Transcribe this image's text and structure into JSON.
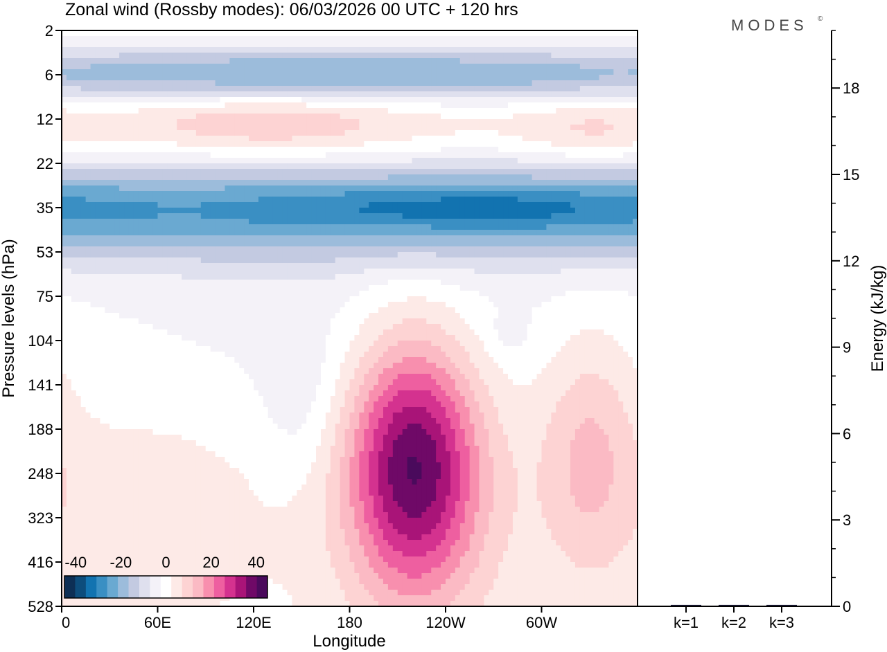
{
  "chart_data": {
    "type": "heatmap",
    "title": "Zonal wind (Rossby modes):  06/03/2026  00 UTC  + 120 hrs",
    "brand": "MODES",
    "brand_mark": "©",
    "xlabel": "Longitude",
    "ylabel": "Pressure levels (hPa)",
    "xticks": [
      "0",
      "60E",
      "120E",
      "180",
      "120W",
      "60W"
    ],
    "xtick_degrees": [
      0,
      60,
      120,
      180,
      240,
      300
    ],
    "xlim_degrees": [
      0,
      360
    ],
    "yticks": [
      "2",
      "6",
      "12",
      "22",
      "35",
      "53",
      "75",
      "104",
      "141",
      "188",
      "248",
      "323",
      "416",
      "528"
    ],
    "colorbar": {
      "ticks": [
        "-40",
        "-20",
        "0",
        "20",
        "40"
      ],
      "tick_values": [
        -40,
        -20,
        0,
        20,
        40
      ],
      "vmin": -45,
      "vmax": 45,
      "colors": [
        "#0d2f55",
        "#0d4d7c",
        "#1273b0",
        "#3a8fc3",
        "#6aa9d1",
        "#9cbcdb",
        "#c3cae1",
        "#dfe0ee",
        "#f4f2f8",
        "#ffffff",
        "#fdeae7",
        "#fdd3d3",
        "#fbbac4",
        "#f88fae",
        "#ee5fa0",
        "#d4328f",
        "#a91478",
        "#6f0967",
        "#4a0a5c"
      ]
    },
    "energy_axis": {
      "label": "Energy (kJ/kg)",
      "ticks": [
        "0",
        "3",
        "6",
        "9",
        "12",
        "15",
        "18"
      ],
      "tick_values": [
        0,
        3,
        6,
        9,
        12,
        15,
        18
      ],
      "ylim": [
        0,
        20
      ]
    },
    "energy_bars": {
      "type": "bar",
      "categories": [
        "k=1",
        "k=2",
        "k=3"
      ],
      "values": [
        0.05,
        0.05,
        0.05
      ]
    },
    "blobs": [
      {
        "name": "upper-easterly-jet-2hPa",
        "lon": 170,
        "lev": 1.0,
        "dlon": 250,
        "dlev": 0.45,
        "amp": -24
      },
      {
        "name": "upper-positive-band",
        "lon": 180,
        "lev": 2.3,
        "dlon": 600,
        "dlev": 1.0,
        "amp": 5
      },
      {
        "name": "upper-max-60E",
        "lon": 130,
        "lev": 2.1,
        "dlon": 60,
        "dlev": 0.55,
        "amp": 9
      },
      {
        "name": "upper-max-60W",
        "lon": 330,
        "lev": 2.3,
        "dlon": 30,
        "dlev": 0.5,
        "amp": 6
      },
      {
        "name": "easterly-jet-35hPa",
        "lon": 180,
        "lev": 4.0,
        "dlon": 700,
        "dlev": 0.85,
        "amp": -26
      },
      {
        "name": "easterly-core-35hPa",
        "lon": 260,
        "lev": 4.0,
        "dlon": 80,
        "dlev": 0.35,
        "amp": -8
      },
      {
        "name": "negative-slab-53-100hPa",
        "lon": 190,
        "lev": 6.5,
        "dlon": 150,
        "dlev": 1.6,
        "amp": -4
      },
      {
        "name": "negative-pocket-135E",
        "lon": 150,
        "lev": 8.5,
        "dlon": 18,
        "dlev": 1.3,
        "amp": -5
      },
      {
        "name": "negative-pocket-80W",
        "lon": 280,
        "lev": 6.8,
        "dlon": 8,
        "dlev": 0.3,
        "amp": -4
      },
      {
        "name": "positive-low-west",
        "lon": 50,
        "lev": 11,
        "dlon": 60,
        "dlev": 2.0,
        "amp": 5
      },
      {
        "name": "tropopause-jet-150W",
        "lon": 220,
        "lev": 9.7,
        "dlon": 28,
        "dlev": 2.0,
        "amp": 34
      },
      {
        "name": "positive-flank-150W",
        "lon": 225,
        "lev": 11,
        "dlon": 45,
        "dlev": 2.5,
        "amp": 8
      },
      {
        "name": "positive-max-30W",
        "lon": 330,
        "lev": 9.5,
        "dlon": 22,
        "dlev": 2.0,
        "amp": 12
      }
    ]
  }
}
